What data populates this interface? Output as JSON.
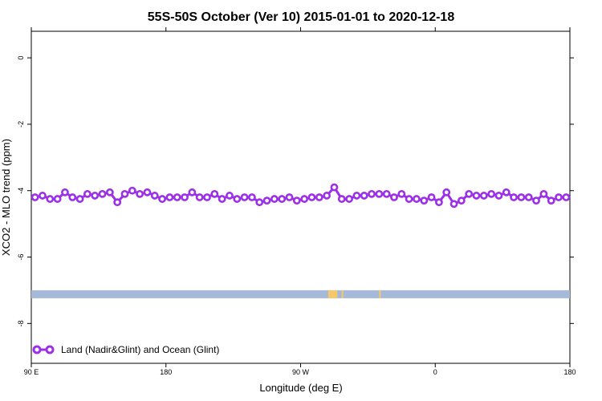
{
  "chart_data": {
    "type": "line",
    "title": "55S-50S October (Ver 10)   2015-01-01 to 2020-12-18",
    "xlabel": "Longitude (deg E)",
    "ylabel": "XCO2 - MLO trend (ppm)",
    "xlim": [
      90,
      450
    ],
    "ylim": [
      -9.2,
      0.8
    ],
    "x_ticks": [
      {
        "value": 90,
        "label": "90 E"
      },
      {
        "value": 180,
        "label": "180"
      },
      {
        "value": 270,
        "label": "90 W"
      },
      {
        "value": 360,
        "label": "0"
      },
      {
        "value": 450,
        "label": "180"
      }
    ],
    "x_ticks_top": [
      90,
      180,
      270,
      360,
      450
    ],
    "y_ticks": [
      {
        "value": 0,
        "label": "0"
      },
      {
        "value": -2,
        "label": "-2"
      },
      {
        "value": -4,
        "label": "-4"
      },
      {
        "value": -6,
        "label": "-6"
      },
      {
        "value": -8,
        "label": "-8"
      }
    ],
    "grid": false,
    "legend": {
      "position": "bottom-left",
      "entries": [
        "Land (Nadir&Glint) and Ocean (Glint)"
      ]
    },
    "colors": {
      "series": "#9b30e8",
      "band": "#a7b9d8",
      "land_marks": "#f5c96a"
    },
    "band_y": -7.12,
    "land_marks_x": [
      289,
      290,
      291,
      292,
      293,
      294,
      298,
      323
    ],
    "series": [
      {
        "name": "Land (Nadir&Glint) and Ocean (Glint)",
        "x": [
          92.5,
          97.5,
          102.5,
          107.5,
          112.5,
          117.5,
          122.5,
          127.5,
          132.5,
          137.5,
          142.5,
          147.5,
          152.5,
          157.5,
          162.5,
          167.5,
          172.5,
          177.5,
          182.5,
          187.5,
          192.5,
          197.5,
          202.5,
          207.5,
          212.5,
          217.5,
          222.5,
          227.5,
          232.5,
          237.5,
          242.5,
          247.5,
          252.5,
          257.5,
          262.5,
          267.5,
          272.5,
          277.5,
          282.5,
          287.5,
          292.5,
          297.5,
          302.5,
          307.5,
          312.5,
          317.5,
          322.5,
          327.5,
          332.5,
          337.5,
          342.5,
          347.5,
          352.5,
          357.5,
          362.5,
          367.5,
          372.5,
          377.5,
          382.5,
          387.5,
          392.5,
          397.5,
          402.5,
          407.5,
          412.5,
          417.5,
          422.5,
          427.5,
          432.5,
          437.5,
          442.5,
          447.5
        ],
        "values": [
          -4.2,
          -4.15,
          -4.25,
          -4.25,
          -4.05,
          -4.2,
          -4.25,
          -4.1,
          -4.15,
          -4.1,
          -4.05,
          -4.35,
          -4.1,
          -4.0,
          -4.1,
          -4.05,
          -4.15,
          -4.25,
          -4.2,
          -4.2,
          -4.2,
          -4.05,
          -4.2,
          -4.2,
          -4.1,
          -4.25,
          -4.15,
          -4.25,
          -4.2,
          -4.2,
          -4.35,
          -4.3,
          -4.25,
          -4.25,
          -4.2,
          -4.3,
          -4.25,
          -4.2,
          -4.2,
          -4.15,
          -3.9,
          -4.25,
          -4.25,
          -4.15,
          -4.15,
          -4.1,
          -4.1,
          -4.1,
          -4.2,
          -4.1,
          -4.25,
          -4.25,
          -4.3,
          -4.2,
          -4.35,
          -4.05,
          -4.4,
          -4.3,
          -4.1,
          -4.15,
          -4.15,
          -4.1,
          -4.15,
          -4.05,
          -4.2,
          -4.2,
          -4.2,
          -4.3,
          -4.1,
          -4.3,
          -4.2,
          -4.2
        ]
      }
    ]
  }
}
